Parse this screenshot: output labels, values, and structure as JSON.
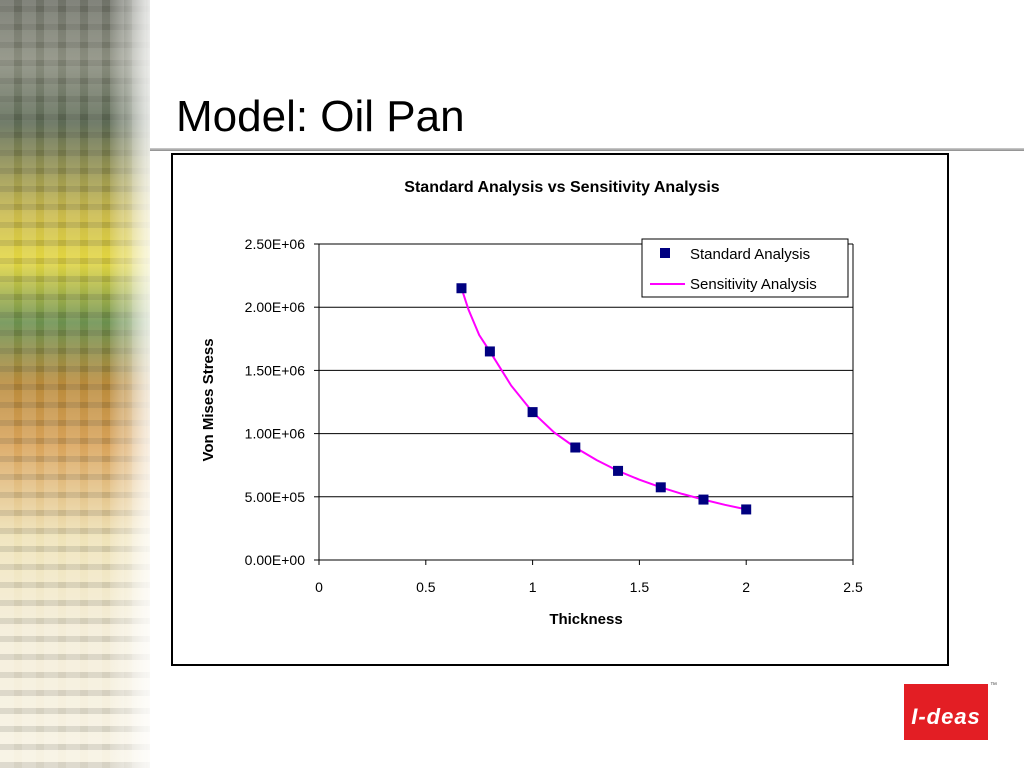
{
  "slide": {
    "title": "Model: Oil Pan"
  },
  "logo": {
    "text": "I-deas",
    "tm": "™",
    "color": "#e31e24"
  },
  "chart_data": {
    "type": "scatter",
    "title": "Standard Analysis vs Sensitivity Analysis",
    "xlabel": "Thickness",
    "ylabel": "Von Mises Stress",
    "xlim": [
      0,
      2.5
    ],
    "ylim": [
      0,
      2500000
    ],
    "x_ticks": [
      "0",
      "0.5",
      "1",
      "1.5",
      "2",
      "2.5"
    ],
    "y_ticks": [
      "0.00E+00",
      "5.00E+05",
      "1.00E+06",
      "1.50E+06",
      "2.00E+06",
      "2.50E+06"
    ],
    "grid": "horizontal",
    "legend_position": "top-right",
    "series": [
      {
        "name": "Standard Analysis",
        "kind": "marker",
        "marker": "square",
        "color": "#000080",
        "points": [
          [
            0.667,
            2150000
          ],
          [
            0.8,
            1650000
          ],
          [
            1.0,
            1170000
          ],
          [
            1.2,
            890000
          ],
          [
            1.4,
            705000
          ],
          [
            1.6,
            575000
          ],
          [
            1.8,
            478000
          ],
          [
            2.0,
            400000
          ]
        ]
      },
      {
        "name": "Sensitivity Analysis",
        "kind": "line",
        "color": "#ff00ff",
        "points": [
          [
            0.667,
            2150000
          ],
          [
            0.7,
            1980000
          ],
          [
            0.75,
            1780000
          ],
          [
            0.8,
            1650000
          ],
          [
            0.9,
            1380000
          ],
          [
            1.0,
            1170000
          ],
          [
            1.1,
            1010000
          ],
          [
            1.2,
            890000
          ],
          [
            1.3,
            790000
          ],
          [
            1.4,
            705000
          ],
          [
            1.5,
            635000
          ],
          [
            1.6,
            575000
          ],
          [
            1.7,
            523000
          ],
          [
            1.8,
            478000
          ],
          [
            1.9,
            437000
          ],
          [
            2.0,
            400000
          ]
        ]
      }
    ]
  }
}
